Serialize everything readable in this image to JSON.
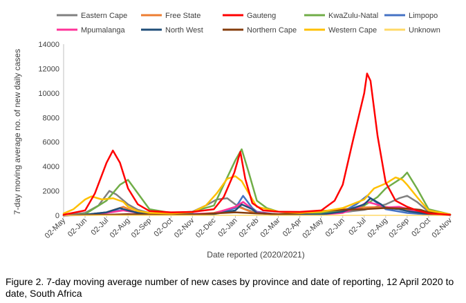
{
  "chart_data": {
    "type": "line",
    "ylabel": "7-day moving average no. of new daily cases",
    "xlabel": "Date reported (2020/2021)",
    "ylim": [
      0,
      14000
    ],
    "yticks": [
      0,
      2000,
      4000,
      6000,
      8000,
      10000,
      12000,
      14000
    ],
    "ytick_labels": [
      "0",
      "2000",
      "4000",
      "6000",
      "8000",
      "10000",
      "12000",
      "14000"
    ],
    "x_start_month": "2020-05",
    "x_end_month": "2021-11",
    "x_tick_labels": [
      "02-May",
      "02-Jun",
      "02-Jul",
      "02-Aug",
      "02-Sep",
      "02-Oct",
      "02-Nov",
      "02-Dec",
      "02-Jan",
      "02-Feb",
      "02-Mar",
      "02-Apr",
      "02-May",
      "02-Jun",
      "02-Jul",
      "02-Aug",
      "02-Sep",
      "02-Oct",
      "02-Nov"
    ],
    "legend_position": "top",
    "grid": false,
    "series": [
      {
        "name": "Eastern Cape",
        "color": "#808080",
        "points": [
          [
            "2020-05",
            0
          ],
          [
            "2020-06",
            200
          ],
          [
            "2020-06-20",
            800
          ],
          [
            "2020-07-05",
            2000
          ],
          [
            "2020-07-15",
            1700
          ],
          [
            "2020-08",
            900
          ],
          [
            "2020-08-15",
            450
          ],
          [
            "2020-09",
            200
          ],
          [
            "2020-10",
            120
          ],
          [
            "2020-11",
            300
          ],
          [
            "2020-11-20",
            800
          ],
          [
            "2020-12-05",
            1300
          ],
          [
            "2020-12-20",
            1400
          ],
          [
            "2021-01",
            900
          ],
          [
            "2021-01-15",
            500
          ],
          [
            "2021-02",
            200
          ],
          [
            "2021-03",
            100
          ],
          [
            "2021-05",
            150
          ],
          [
            "2021-06",
            250
          ],
          [
            "2021-07",
            450
          ],
          [
            "2021-08",
            900
          ],
          [
            "2021-08-20",
            1400
          ],
          [
            "2021-09",
            1600
          ],
          [
            "2021-09-15",
            1100
          ],
          [
            "2021-10",
            300
          ],
          [
            "2021-11",
            80
          ]
        ]
      },
      {
        "name": "Free State",
        "color": "#ED7D31",
        "points": [
          [
            "2020-05",
            0
          ],
          [
            "2020-06",
            50
          ],
          [
            "2020-07",
            250
          ],
          [
            "2020-07-25",
            700
          ],
          [
            "2020-08-10",
            300
          ],
          [
            "2020-09",
            100
          ],
          [
            "2020-11",
            100
          ],
          [
            "2020-12",
            200
          ],
          [
            "2021-01-05",
            700
          ],
          [
            "2021-01-25",
            250
          ],
          [
            "2021-03",
            80
          ],
          [
            "2021-05",
            200
          ],
          [
            "2021-06",
            500
          ],
          [
            "2021-07",
            650
          ],
          [
            "2021-08",
            700
          ],
          [
            "2021-09",
            450
          ],
          [
            "2021-10",
            150
          ],
          [
            "2021-11",
            60
          ]
        ]
      },
      {
        "name": "Gauteng",
        "color": "#FF0000",
        "points": [
          [
            "2020-05",
            50
          ],
          [
            "2020-06",
            400
          ],
          [
            "2020-06-15",
            1800
          ],
          [
            "2020-07",
            4300
          ],
          [
            "2020-07-10",
            5300
          ],
          [
            "2020-07-20",
            4300
          ],
          [
            "2020-08",
            2200
          ],
          [
            "2020-08-15",
            900
          ],
          [
            "2020-09",
            350
          ],
          [
            "2020-10",
            250
          ],
          [
            "2020-11",
            280
          ],
          [
            "2020-12",
            500
          ],
          [
            "2020-12-15",
            1500
          ],
          [
            "2020-12-30",
            3500
          ],
          [
            "2021-01-08",
            5200
          ],
          [
            "2021-01-15",
            3000
          ],
          [
            "2021-01-25",
            1000
          ],
          [
            "2021-02-10",
            400
          ],
          [
            "2021-03",
            300
          ],
          [
            "2021-04",
            280
          ],
          [
            "2021-05",
            400
          ],
          [
            "2021-05-20",
            1200
          ],
          [
            "2021-06",
            2500
          ],
          [
            "2021-06-15",
            6000
          ],
          [
            "2021-07",
            10000
          ],
          [
            "2021-07-05",
            11600
          ],
          [
            "2021-07-10",
            11000
          ],
          [
            "2021-07-20",
            6500
          ],
          [
            "2021-08",
            2700
          ],
          [
            "2021-08-15",
            1200
          ],
          [
            "2021-09",
            700
          ],
          [
            "2021-09-15",
            400
          ],
          [
            "2021-10",
            150
          ],
          [
            "2021-11",
            50
          ]
        ]
      },
      {
        "name": "KwaZulu-Natal",
        "color": "#70AD47",
        "points": [
          [
            "2020-05",
            0
          ],
          [
            "2020-06",
            100
          ],
          [
            "2020-07",
            1200
          ],
          [
            "2020-07-20",
            2500
          ],
          [
            "2020-08",
            2900
          ],
          [
            "2020-08-15",
            1800
          ],
          [
            "2020-09",
            500
          ],
          [
            "2020-10",
            200
          ],
          [
            "2020-11",
            300
          ],
          [
            "2020-12",
            800
          ],
          [
            "2020-12-15",
            2500
          ],
          [
            "2021-01",
            4500
          ],
          [
            "2021-01-10",
            5400
          ],
          [
            "2021-01-20",
            3500
          ],
          [
            "2021-02",
            1200
          ],
          [
            "2021-02-15",
            600
          ],
          [
            "2021-03",
            300
          ],
          [
            "2021-05",
            200
          ],
          [
            "2021-06",
            400
          ],
          [
            "2021-07",
            800
          ],
          [
            "2021-07-20",
            1500
          ],
          [
            "2021-08",
            2200
          ],
          [
            "2021-08-25",
            3100
          ],
          [
            "2021-09",
            3500
          ],
          [
            "2021-09-15",
            2200
          ],
          [
            "2021-10",
            500
          ],
          [
            "2021-11",
            80
          ]
        ]
      },
      {
        "name": "Limpopo",
        "color": "#4472C4",
        "points": [
          [
            "2020-05",
            0
          ],
          [
            "2020-06",
            50
          ],
          [
            "2020-07",
            250
          ],
          [
            "2020-07-25",
            450
          ],
          [
            "2020-08-15",
            200
          ],
          [
            "2020-09",
            80
          ],
          [
            "2020-12",
            100
          ],
          [
            "2021-01",
            600
          ],
          [
            "2021-01-12",
            1600
          ],
          [
            "2021-01-25",
            600
          ],
          [
            "2021-02",
            300
          ],
          [
            "2021-03",
            60
          ],
          [
            "2021-05",
            80
          ],
          [
            "2021-06",
            300
          ],
          [
            "2021-06-20",
            900
          ],
          [
            "2021-07-05",
            1600
          ],
          [
            "2021-07-20",
            1000
          ],
          [
            "2021-08",
            500
          ],
          [
            "2021-09",
            200
          ],
          [
            "2021-10",
            60
          ],
          [
            "2021-11",
            20
          ]
        ]
      },
      {
        "name": "Mpumalanga",
        "color": "#FF3399",
        "points": [
          [
            "2020-05",
            0
          ],
          [
            "2020-06",
            50
          ],
          [
            "2020-07",
            200
          ],
          [
            "2020-07-25",
            400
          ],
          [
            "2020-08-15",
            200
          ],
          [
            "2020-09",
            60
          ],
          [
            "2020-12",
            150
          ],
          [
            "2021-01",
            700
          ],
          [
            "2021-01-12",
            1100
          ],
          [
            "2021-01-25",
            500
          ],
          [
            "2021-02",
            250
          ],
          [
            "2021-03",
            50
          ],
          [
            "2021-05",
            60
          ],
          [
            "2021-06",
            200
          ],
          [
            "2021-06-25",
            700
          ],
          [
            "2021-07-05",
            1100
          ],
          [
            "2021-07-25",
            800
          ],
          [
            "2021-08",
            650
          ],
          [
            "2021-08-20",
            700
          ],
          [
            "2021-09",
            550
          ],
          [
            "2021-09-15",
            300
          ],
          [
            "2021-10",
            80
          ],
          [
            "2021-11",
            20
          ]
        ]
      },
      {
        "name": "North West",
        "color": "#1F4E79",
        "points": [
          [
            "2020-05",
            0
          ],
          [
            "2020-06",
            50
          ],
          [
            "2020-07",
            250
          ],
          [
            "2020-07-20",
            600
          ],
          [
            "2020-08",
            400
          ],
          [
            "2020-08-15",
            200
          ],
          [
            "2020-09",
            80
          ],
          [
            "2020-12",
            100
          ],
          [
            "2021-01",
            400
          ],
          [
            "2021-01-10",
            900
          ],
          [
            "2021-01-25",
            500
          ],
          [
            "2021-02",
            200
          ],
          [
            "2021-03",
            50
          ],
          [
            "2021-05",
            80
          ],
          [
            "2021-06",
            300
          ],
          [
            "2021-07",
            900
          ],
          [
            "2021-07-10",
            1400
          ],
          [
            "2021-07-25",
            900
          ],
          [
            "2021-08",
            600
          ],
          [
            "2021-08-20",
            500
          ],
          [
            "2021-09",
            350
          ],
          [
            "2021-10",
            100
          ],
          [
            "2021-11",
            20
          ]
        ]
      },
      {
        "name": "Northern Cape",
        "color": "#843C0C",
        "points": [
          [
            "2020-05",
            0
          ],
          [
            "2020-07",
            50
          ],
          [
            "2020-08",
            100
          ],
          [
            "2020-09",
            60
          ],
          [
            "2020-11",
            50
          ],
          [
            "2020-12",
            150
          ],
          [
            "2021-01",
            250
          ],
          [
            "2021-02",
            150
          ],
          [
            "2021-03",
            100
          ],
          [
            "2021-04",
            150
          ],
          [
            "2021-05",
            350
          ],
          [
            "2021-06",
            450
          ],
          [
            "2021-07",
            500
          ],
          [
            "2021-08",
            600
          ],
          [
            "2021-09",
            550
          ],
          [
            "2021-09-20",
            450
          ],
          [
            "2021-10",
            250
          ],
          [
            "2021-11",
            50
          ]
        ]
      },
      {
        "name": "Western Cape",
        "color": "#FFC000",
        "points": [
          [
            "2020-05",
            150
          ],
          [
            "2020-05-15",
            500
          ],
          [
            "2020-06",
            1300
          ],
          [
            "2020-06-10",
            1550
          ],
          [
            "2020-06-25",
            1300
          ],
          [
            "2020-07-10",
            1400
          ],
          [
            "2020-07-25",
            1100
          ],
          [
            "2020-08",
            700
          ],
          [
            "2020-08-15",
            350
          ],
          [
            "2020-09",
            200
          ],
          [
            "2020-10",
            150
          ],
          [
            "2020-11",
            250
          ],
          [
            "2020-11-20",
            800
          ],
          [
            "2020-12-05",
            1800
          ],
          [
            "2020-12-20",
            3000
          ],
          [
            "2021-01",
            3200
          ],
          [
            "2021-01-10",
            2800
          ],
          [
            "2021-01-20",
            1800
          ],
          [
            "2021-02",
            700
          ],
          [
            "2021-03",
            300
          ],
          [
            "2021-04",
            200
          ],
          [
            "2021-05",
            300
          ],
          [
            "2021-06",
            600
          ],
          [
            "2021-07",
            1300
          ],
          [
            "2021-07-15",
            2200
          ],
          [
            "2021-08",
            2600
          ],
          [
            "2021-08-15",
            3100
          ],
          [
            "2021-08-25",
            2900
          ],
          [
            "2021-09",
            2500
          ],
          [
            "2021-09-15",
            1500
          ],
          [
            "2021-10",
            400
          ],
          [
            "2021-11",
            80
          ]
        ]
      },
      {
        "name": "Unknown",
        "color": "#FFD966",
        "points": [
          [
            "2020-05",
            0
          ],
          [
            "2021-11",
            0
          ]
        ]
      }
    ]
  },
  "caption": "Figure 2. 7-day moving average number of new cases by province and date of reporting, 12 April 2020 to date, South Africa"
}
